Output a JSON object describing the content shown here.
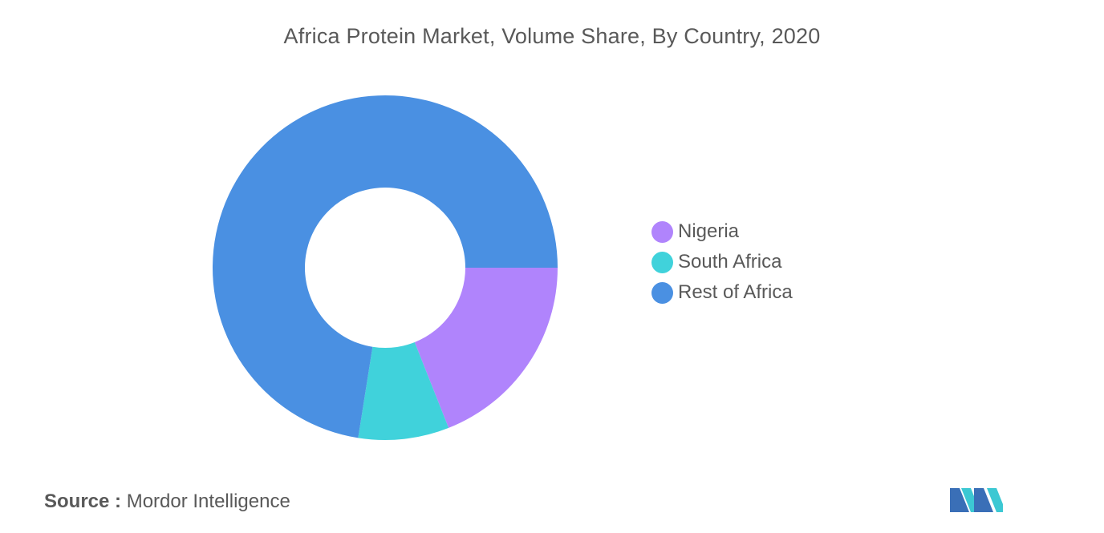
{
  "chart_data": {
    "type": "pie",
    "title": "Africa Protein Market, Volume Share, By Country, 2020",
    "donut": true,
    "categories": [
      "Nigeria",
      "South Africa",
      "Rest of Africa"
    ],
    "values": [
      19,
      8.5,
      72.5
    ],
    "colors": [
      "#b084fc",
      "#40d2db",
      "#4a90e2"
    ],
    "legend_position": "right",
    "data_labels": false
  },
  "legend": {
    "items": [
      {
        "label": "Nigeria",
        "color": "#b084fc"
      },
      {
        "label": "South Africa",
        "color": "#40d2db"
      },
      {
        "label": "Rest of Africa",
        "color": "#4a90e2"
      }
    ]
  },
  "source": {
    "key": "Source :",
    "value": "Mordor Intelligence"
  },
  "logo": {
    "icon": "mordor-intelligence-logo-icon",
    "colors": [
      "#3a6fb7",
      "#3cc8d3"
    ]
  }
}
